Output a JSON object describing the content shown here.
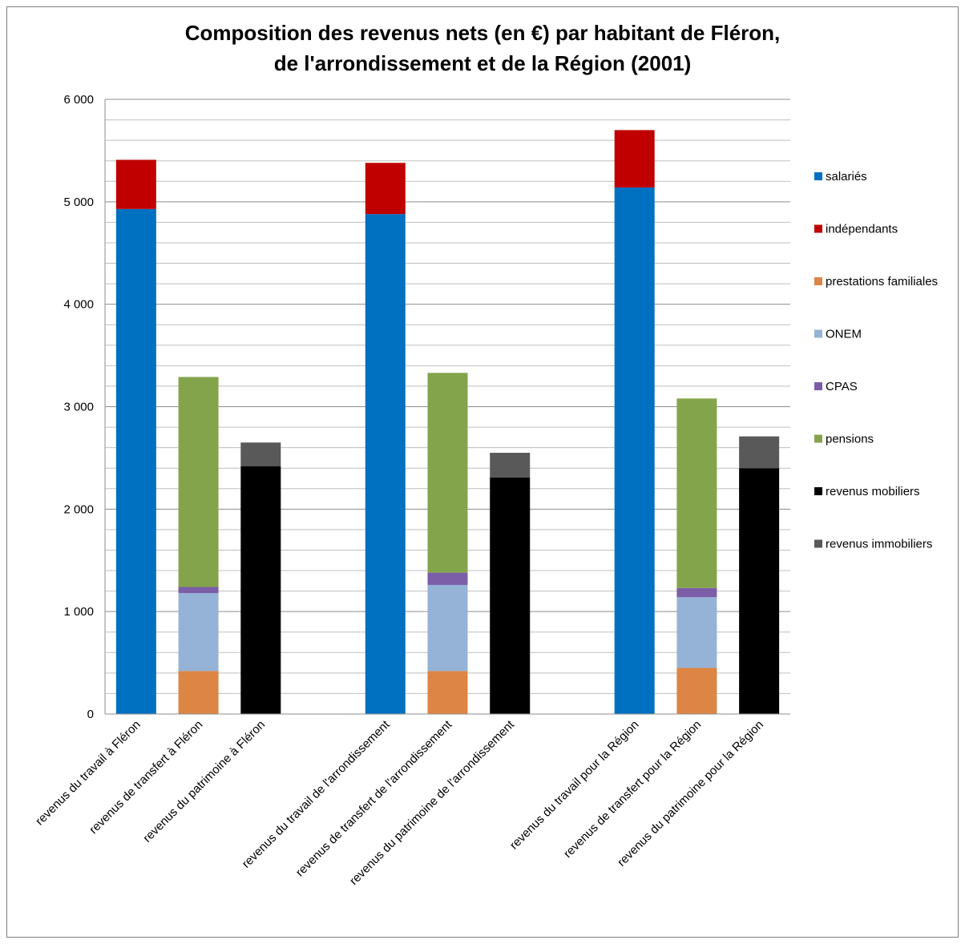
{
  "chart_data": {
    "type": "bar",
    "stacked": true,
    "title_lines": [
      "Composition  des revenus nets (en €) par habitant de Fléron,",
      "de l'arrondissement  et de la Région (2001)"
    ],
    "xlabel": "",
    "ylabel": "",
    "ylim": [
      0,
      6000
    ],
    "y_ticks": [
      0,
      1000,
      2000,
      3000,
      4000,
      5000,
      6000
    ],
    "y_tick_labels": [
      "0",
      "1 000",
      "2 000",
      "3 000",
      "4 000",
      "5 000",
      "6 000"
    ],
    "grid": true,
    "legend_position": "right",
    "categories": [
      "revenus du travail à Fléron",
      "revenus de transfert à Fléron",
      "revenus du patrimoine à Fléron",
      "revenus du travail de l'arrondissement",
      "revenus de transfert de l'arrondissement",
      "revenus du patrimoine de l'arrondissement",
      "revenus du travail  pour la Région",
      "revenus de transfert pour la Région",
      "revenus du patrimoine  pour la Région"
    ],
    "series": [
      {
        "name": "salariés",
        "color": "#0070c0",
        "values": [
          4930,
          0,
          0,
          4880,
          0,
          0,
          5140,
          0,
          0
        ]
      },
      {
        "name": "indépendants",
        "color": "#c00000",
        "values": [
          480,
          0,
          0,
          500,
          0,
          0,
          560,
          0,
          0
        ]
      },
      {
        "name": "prestations familiales",
        "color": "#dd8544",
        "values": [
          0,
          420,
          0,
          0,
          420,
          0,
          0,
          450,
          0
        ]
      },
      {
        "name": "ONEM",
        "color": "#95b3d7",
        "values": [
          0,
          760,
          0,
          0,
          840,
          0,
          0,
          690,
          0
        ]
      },
      {
        "name": "CPAS",
        "color": "#7b5ea7",
        "values": [
          0,
          60,
          0,
          0,
          120,
          0,
          0,
          90,
          0
        ]
      },
      {
        "name": "pensions",
        "color": "#84a44b",
        "values": [
          0,
          2050,
          0,
          0,
          1950,
          0,
          0,
          1850,
          0
        ]
      },
      {
        "name": "revenus mobiliers",
        "color": "#000000",
        "values": [
          0,
          0,
          2420,
          0,
          0,
          2310,
          0,
          0,
          2400
        ]
      },
      {
        "name": "revenus immobiliers",
        "color": "#595959",
        "values": [
          0,
          0,
          230,
          0,
          0,
          240,
          0,
          0,
          310
        ]
      }
    ]
  }
}
